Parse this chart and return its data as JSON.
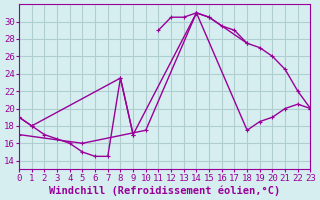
{
  "bg_color": "#d6eef0",
  "grid_color": "#b0cdd0",
  "line_color": "#990099",
  "marker_color": "#990099",
  "xlabel": "Windchill (Refroidissement éolien,°C)",
  "ylabel": "",
  "xlim": [
    0,
    23
  ],
  "ylim": [
    13,
    32
  ],
  "yticks": [
    14,
    16,
    18,
    20,
    22,
    24,
    26,
    28,
    30
  ],
  "xticks": [
    0,
    1,
    2,
    3,
    4,
    5,
    6,
    7,
    8,
    9,
    10,
    11,
    12,
    13,
    14,
    15,
    16,
    17,
    18,
    19,
    20,
    21,
    22,
    23
  ],
  "series1_x": [
    0,
    1,
    2,
    3,
    4,
    5,
    6,
    7,
    8,
    9,
    10,
    11,
    12,
    13,
    14,
    15,
    16,
    17,
    18,
    19,
    20,
    21,
    22,
    23
  ],
  "series1_y": [
    19.0,
    18.0,
    17.0,
    16.5,
    16.0,
    15.0,
    14.5,
    14.5,
    23.5,
    17.0,
    null,
    null,
    null,
    null,
    null,
    null,
    null,
    null,
    null,
    null,
    null,
    null,
    null,
    null
  ],
  "series2_x": [
    0,
    1,
    2,
    3,
    4,
    5,
    6,
    7,
    8,
    9,
    10,
    11,
    12,
    13,
    14,
    15,
    16,
    17,
    18,
    19,
    20,
    21,
    22,
    23
  ],
  "series2_y": [
    null,
    null,
    null,
    null,
    null,
    null,
    null,
    null,
    null,
    null,
    null,
    29.0,
    30.5,
    30.5,
    31.0,
    30.5,
    29.5,
    29.0,
    27.5,
    null,
    null,
    null,
    null,
    null
  ],
  "series3_x": [
    0,
    1,
    8,
    9,
    14,
    15,
    18,
    19,
    20,
    21,
    22,
    23
  ],
  "series3_y": [
    19.0,
    18.0,
    23.5,
    17.0,
    31.0,
    30.5,
    27.5,
    27.0,
    26.0,
    24.5,
    22.0,
    20.0
  ],
  "series4_x": [
    0,
    5,
    10,
    14,
    18,
    19,
    20,
    21,
    22,
    23
  ],
  "series4_y": [
    17.0,
    16.0,
    17.5,
    31.0,
    17.5,
    18.5,
    19.0,
    20.0,
    20.5,
    20.0
  ],
  "title_fontsize": 7.5,
  "label_fontsize": 7.5,
  "tick_fontsize": 6.5
}
